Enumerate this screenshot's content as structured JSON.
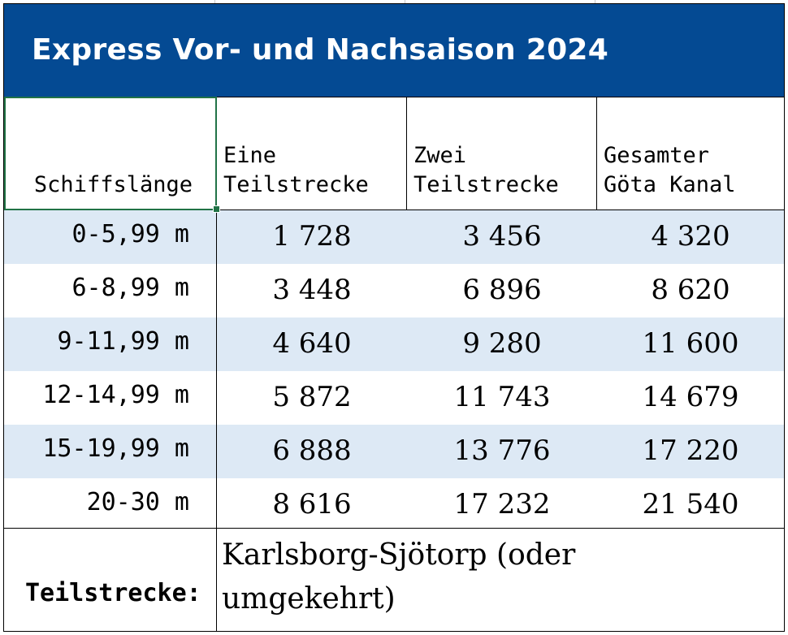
{
  "title": "Express Vor- und Nachsaison 2024",
  "headers": {
    "length": "Schiffslänge",
    "one_line1": "Eine",
    "one_line2": "Teilstrecke",
    "two_line1": "Zwei",
    "two_line2": "Teilstrecke",
    "all_line1": "Gesamter",
    "all_line2": "Göta Kanal"
  },
  "rows": [
    {
      "length": "0-5,99 m",
      "one": "1 728",
      "two": "3 456",
      "all": "4 320"
    },
    {
      "length": "6-8,99 m",
      "one": "3 448",
      "two": "6 896",
      "all": "8 620"
    },
    {
      "length": "9-11,99 m",
      "one": "4 640",
      "two": "9 280",
      "all": "11 600"
    },
    {
      "length": "12-14,99 m",
      "one": "5 872",
      "two": "11 743",
      "all": "14 679"
    },
    {
      "length": "15-19,99 m",
      "one": "6 888",
      "two": "13 776",
      "all": "17 220"
    },
    {
      "length": "20-30 m",
      "one": "8 616",
      "two": "17 232",
      "all": "21 540"
    }
  ],
  "footer": {
    "label": "Teilstrecke:",
    "text": "Karlsborg-Sjötorp (oder umgekehrt)"
  },
  "colors": {
    "title_bg": "#044a93",
    "row_shade": "#dde9f5",
    "selection": "#217346"
  }
}
